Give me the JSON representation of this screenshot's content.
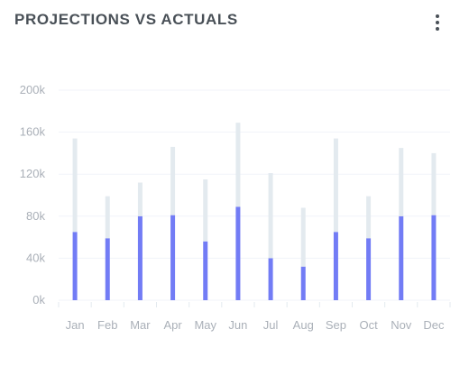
{
  "header": {
    "title": "PROJECTIONS VS ACTUALS",
    "menu_icon": "more-vertical-icon"
  },
  "colors": {
    "actual": "#727cf5",
    "projection": "#e3eaef",
    "grid": "#f1f3fa",
    "tick_text": "#aab0b8",
    "title": "#495057"
  },
  "chart_data": {
    "type": "bar",
    "stacked": true,
    "categories": [
      "Jan",
      "Feb",
      "Mar",
      "Apr",
      "May",
      "Jun",
      "Jul",
      "Aug",
      "Sep",
      "Oct",
      "Nov",
      "Dec"
    ],
    "series": [
      {
        "values": [
          65,
          59,
          80,
          81,
          56,
          89,
          40,
          32,
          65,
          59,
          80,
          81
        ]
      },
      {
        "values": [
          89,
          40,
          32,
          65,
          59,
          80,
          81,
          56,
          89,
          40,
          65,
          59
        ]
      }
    ],
    "y_ticks": [
      "0k",
      "40k",
      "80k",
      "120k",
      "160k",
      "200k"
    ],
    "ylim": [
      0,
      200
    ],
    "grid": true,
    "legend": "none",
    "title": "",
    "xlabel": "",
    "ylabel": ""
  }
}
